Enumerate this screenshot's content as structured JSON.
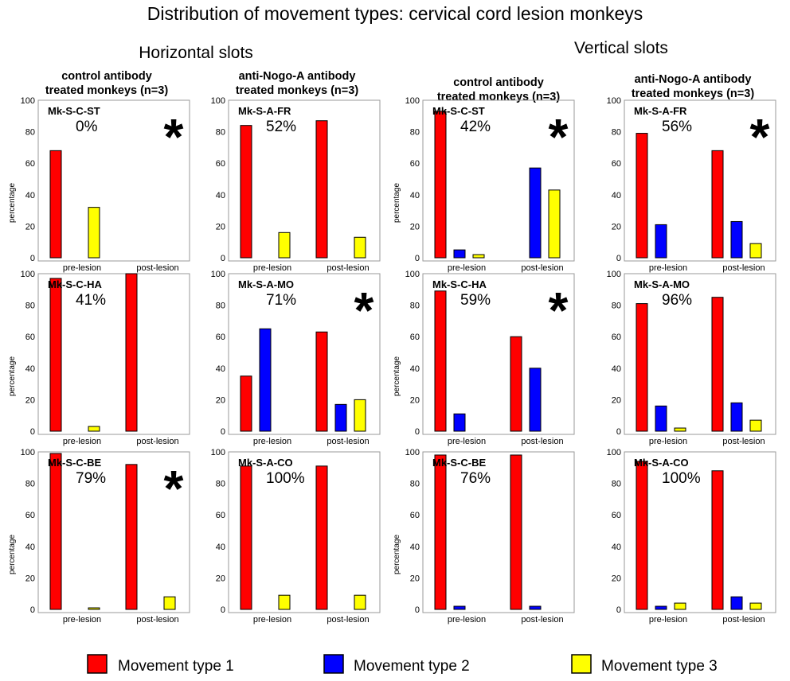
{
  "figure": {
    "title": "Distribution of movement types: cervical cord lesion monkeys",
    "groups": [
      "Horizontal slots",
      "Vertical slots"
    ],
    "columns": [
      [
        "control antibody",
        "treated monkeys (n=3)"
      ],
      [
        "anti-Nogo-A antibody",
        "treated monkeys (n=3)"
      ],
      [
        "control antibody",
        "treated monkeys (n=3)"
      ],
      [
        "anti-Nogo-A antibody",
        "treated monkeys (n=3)"
      ]
    ],
    "legend": [
      {
        "label": "Movement type 1",
        "color": "#ff0000"
      },
      {
        "label": "Movement type 2",
        "color": "#0000ff"
      },
      {
        "label": "Movement type 3",
        "color": "#ffff00"
      }
    ],
    "star_symbol": "*"
  },
  "chart_data": [
    {
      "type": "bar",
      "group": "Horizontal slots",
      "column": 0,
      "row": 0,
      "name": "Mk-S-C-ST",
      "pct": "0%",
      "star": true,
      "ylabel": "percentage",
      "ylim": [
        0,
        100
      ],
      "yticks": [
        0,
        20,
        40,
        60,
        80,
        100
      ],
      "categories": [
        "pre-lesion",
        "post-lesion"
      ],
      "series": [
        {
          "name": "Movement type 1",
          "values": [
            68,
            0
          ]
        },
        {
          "name": "Movement type 2",
          "values": [
            0,
            0
          ]
        },
        {
          "name": "Movement type 3",
          "values": [
            32,
            0
          ]
        }
      ]
    },
    {
      "type": "bar",
      "group": "Horizontal slots",
      "column": 1,
      "row": 0,
      "name": "Mk-S-A-FR",
      "pct": "52%",
      "star": false,
      "ylabel": "",
      "ylim": [
        0,
        100
      ],
      "yticks": [
        0,
        20,
        40,
        60,
        80,
        100
      ],
      "categories": [
        "pre-lesion",
        "post-lesion"
      ],
      "series": [
        {
          "name": "Movement type 1",
          "values": [
            84,
            87
          ]
        },
        {
          "name": "Movement type 2",
          "values": [
            0,
            0
          ]
        },
        {
          "name": "Movement type 3",
          "values": [
            16,
            13
          ]
        }
      ]
    },
    {
      "type": "bar",
      "group": "Horizontal slots",
      "column": 0,
      "row": 1,
      "name": "Mk-S-C-HA",
      "pct": "41%",
      "star": false,
      "ylabel": "percentage",
      "ylim": [
        0,
        100
      ],
      "yticks": [
        0,
        20,
        40,
        60,
        80,
        100
      ],
      "categories": [
        "pre-lesion",
        "post-lesion"
      ],
      "series": [
        {
          "name": "Movement type 1",
          "values": [
            97,
            100
          ]
        },
        {
          "name": "Movement type 2",
          "values": [
            0,
            0
          ]
        },
        {
          "name": "Movement type 3",
          "values": [
            3,
            0
          ]
        }
      ]
    },
    {
      "type": "bar",
      "group": "Horizontal slots",
      "column": 1,
      "row": 1,
      "name": "Mk-S-A-MO",
      "pct": "71%",
      "star": true,
      "ylabel": "",
      "ylim": [
        0,
        100
      ],
      "yticks": [
        0,
        20,
        40,
        60,
        80,
        100
      ],
      "categories": [
        "pre-lesion",
        "post-lesion"
      ],
      "series": [
        {
          "name": "Movement type 1",
          "values": [
            35,
            63
          ]
        },
        {
          "name": "Movement type 2",
          "values": [
            65,
            17
          ]
        },
        {
          "name": "Movement type 3",
          "values": [
            0,
            20
          ]
        }
      ]
    },
    {
      "type": "bar",
      "group": "Horizontal slots",
      "column": 0,
      "row": 2,
      "name": "Mk-S-C-BE",
      "pct": "79%",
      "star": true,
      "ylabel": "percentage",
      "ylim": [
        0,
        100
      ],
      "yticks": [
        0,
        20,
        40,
        60,
        80,
        100
      ],
      "categories": [
        "pre-lesion",
        "post-lesion"
      ],
      "series": [
        {
          "name": "Movement type 1",
          "values": [
            99,
            92
          ]
        },
        {
          "name": "Movement type 2",
          "values": [
            0,
            0
          ]
        },
        {
          "name": "Movement type 3",
          "values": [
            1,
            8
          ]
        }
      ]
    },
    {
      "type": "bar",
      "group": "Horizontal slots",
      "column": 1,
      "row": 2,
      "name": "Mk-S-A-CO",
      "pct": "100%",
      "star": false,
      "ylabel": "",
      "ylim": [
        0,
        100
      ],
      "yticks": [
        0,
        20,
        40,
        60,
        80,
        100
      ],
      "categories": [
        "pre-lesion",
        "post-lesion"
      ],
      "series": [
        {
          "name": "Movement type 1",
          "values": [
            91,
            91
          ]
        },
        {
          "name": "Movement type 2",
          "values": [
            0,
            0
          ]
        },
        {
          "name": "Movement type 3",
          "values": [
            9,
            9
          ]
        }
      ]
    },
    {
      "type": "bar",
      "group": "Vertical slots",
      "column": 2,
      "row": 0,
      "name": "Mk-S-C-ST",
      "pct": "42%",
      "star": true,
      "ylabel": "percentage",
      "ylim": [
        0,
        100
      ],
      "yticks": [
        0,
        20,
        40,
        60,
        80,
        100
      ],
      "categories": [
        "pre-lesion",
        "post-lesion"
      ],
      "series": [
        {
          "name": "Movement type 1",
          "values": [
            93,
            0
          ]
        },
        {
          "name": "Movement type 2",
          "values": [
            5,
            57
          ]
        },
        {
          "name": "Movement type 3",
          "values": [
            2,
            43
          ]
        }
      ]
    },
    {
      "type": "bar",
      "group": "Vertical slots",
      "column": 3,
      "row": 0,
      "name": "Mk-S-A-FR",
      "pct": "56%",
      "star": true,
      "ylabel": "",
      "ylim": [
        0,
        100
      ],
      "yticks": [
        0,
        20,
        40,
        60,
        80,
        100
      ],
      "categories": [
        "pre-lesion",
        "post-lesion"
      ],
      "series": [
        {
          "name": "Movement type 1",
          "values": [
            79,
            68
          ]
        },
        {
          "name": "Movement type 2",
          "values": [
            21,
            23
          ]
        },
        {
          "name": "Movement type 3",
          "values": [
            0,
            9
          ]
        }
      ]
    },
    {
      "type": "bar",
      "group": "Vertical slots",
      "column": 2,
      "row": 1,
      "name": "Mk-S-C-HA",
      "pct": "59%",
      "star": true,
      "ylabel": "percentage",
      "ylim": [
        0,
        100
      ],
      "yticks": [
        0,
        20,
        40,
        60,
        80,
        100
      ],
      "categories": [
        "pre-lesion",
        "post-lesion"
      ],
      "series": [
        {
          "name": "Movement type 1",
          "values": [
            89,
            60
          ]
        },
        {
          "name": "Movement type 2",
          "values": [
            11,
            40
          ]
        },
        {
          "name": "Movement type 3",
          "values": [
            0,
            0
          ]
        }
      ]
    },
    {
      "type": "bar",
      "group": "Vertical slots",
      "column": 3,
      "row": 1,
      "name": "Mk-S-A-MO",
      "pct": "96%",
      "star": false,
      "ylabel": "",
      "ylim": [
        0,
        100
      ],
      "yticks": [
        0,
        20,
        40,
        60,
        80,
        100
      ],
      "categories": [
        "pre-lesion",
        "post-lesion"
      ],
      "series": [
        {
          "name": "Movement type 1",
          "values": [
            81,
            85
          ]
        },
        {
          "name": "Movement type 2",
          "values": [
            16,
            18
          ]
        },
        {
          "name": "Movement type 3",
          "values": [
            2,
            7
          ]
        }
      ]
    },
    {
      "type": "bar",
      "group": "Vertical slots",
      "column": 2,
      "row": 2,
      "name": "Mk-S-C-BE",
      "pct": "76%",
      "star": false,
      "ylabel": "percentage",
      "ylim": [
        0,
        100
      ],
      "yticks": [
        0,
        20,
        40,
        60,
        80,
        100
      ],
      "categories": [
        "pre-lesion",
        "post-lesion"
      ],
      "series": [
        {
          "name": "Movement type 1",
          "values": [
            98,
            98
          ]
        },
        {
          "name": "Movement type 2",
          "values": [
            2,
            2
          ]
        },
        {
          "name": "Movement type 3",
          "values": [
            0,
            0
          ]
        }
      ]
    },
    {
      "type": "bar",
      "group": "Vertical slots",
      "column": 3,
      "row": 2,
      "name": "Mk-S-A-CO",
      "pct": "100%",
      "star": false,
      "ylabel": "",
      "ylim": [
        0,
        100
      ],
      "yticks": [
        0,
        20,
        40,
        60,
        80,
        100
      ],
      "categories": [
        "pre-lesion",
        "post-lesion"
      ],
      "series": [
        {
          "name": "Movement type 1",
          "values": [
            94,
            88
          ]
        },
        {
          "name": "Movement type 2",
          "values": [
            2,
            8
          ]
        },
        {
          "name": "Movement type 3",
          "values": [
            4,
            4
          ]
        }
      ]
    }
  ]
}
